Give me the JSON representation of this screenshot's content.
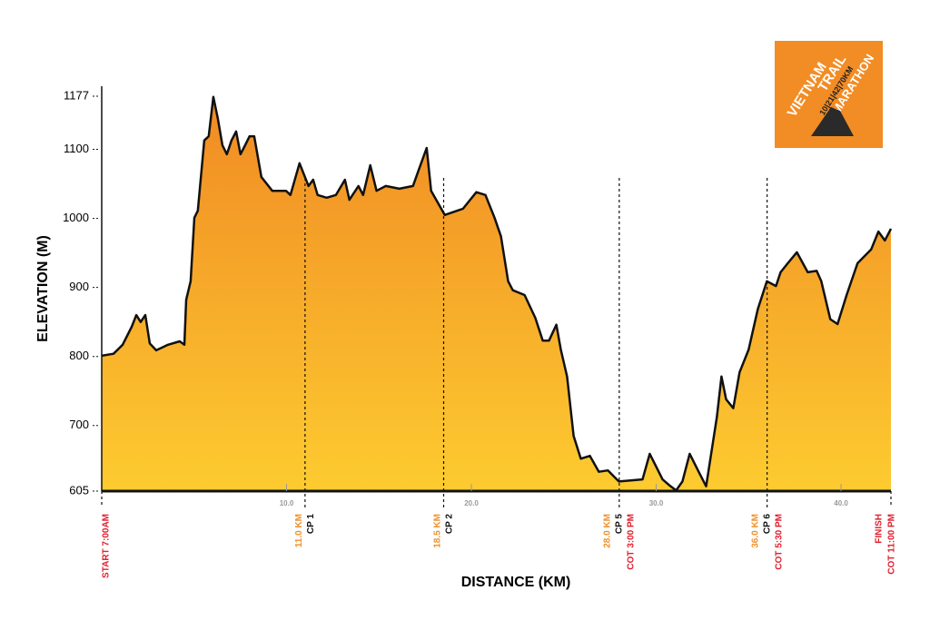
{
  "chart_data": {
    "type": "area",
    "xlabel": "DISTANCE (KM)",
    "ylabel": "ELEVATION (M)",
    "x": [
      0,
      0.64,
      1.13,
      1.62,
      1.87,
      2.11,
      2.36,
      2.6,
      2.95,
      3.58,
      4.22,
      4.47,
      4.57,
      4.81,
      5.01,
      5.2,
      5.55,
      5.79,
      6.04,
      6.28,
      6.53,
      6.77,
      7.02,
      7.27,
      7.51,
      7.76,
      8.0,
      8.25,
      8.64,
      9.23,
      9.97,
      10.21,
      10.7,
      11.19,
      11.44,
      11.68,
      12.17,
      12.67,
      13.16,
      13.4,
      13.89,
      14.14,
      14.53,
      14.87,
      15.37,
      16.1,
      16.84,
      17.19,
      17.58,
      17.82,
      18.56,
      19.54,
      20.27,
      20.76,
      21.25,
      21.6,
      21.99,
      22.24,
      22.88,
      23.46,
      23.86,
      24.2,
      24.6,
      24.84,
      25.18,
      25.53,
      25.92,
      26.41,
      26.9,
      27.39,
      27.98,
      29.26,
      29.65,
      29.95,
      30.34,
      30.73,
      31.08,
      31.42,
      31.81,
      32.3,
      32.7,
      33.28,
      33.53,
      33.78,
      34.17,
      34.51,
      35.0,
      35.5,
      35.99,
      36.48,
      36.73,
      37.12,
      37.61,
      38.2,
      38.68,
      38.93,
      39.42,
      39.81,
      40.3,
      40.89,
      41.63,
      42.02,
      42.37,
      42.7
    ],
    "y": [
      801,
      804,
      817,
      843,
      860,
      850,
      860,
      819,
      809,
      817,
      822,
      817,
      882,
      909,
      1001,
      1011,
      1113,
      1119,
      1176,
      1145,
      1106,
      1093,
      1113,
      1126,
      1093,
      1106,
      1119,
      1119,
      1060,
      1040,
      1040,
      1034,
      1080,
      1047,
      1056,
      1034,
      1030,
      1034,
      1056,
      1027,
      1047,
      1034,
      1077,
      1040,
      1047,
      1043,
      1047,
      1073,
      1102,
      1040,
      1005,
      1014,
      1038,
      1034,
      1001,
      974,
      909,
      896,
      889,
      856,
      823,
      823,
      846,
      810,
      771,
      685,
      652,
      656,
      633,
      635,
      619,
      622,
      659,
      643,
      622,
      613,
      606,
      619,
      659,
      633,
      612,
      712,
      771,
      738,
      725,
      777,
      810,
      869,
      909,
      902,
      922,
      935,
      951,
      922,
      924,
      909,
      854,
      847,
      889,
      935,
      955,
      981,
      968,
      985
    ],
    "color_top": "#f08a24",
    "color_bottom": "#fdcb30",
    "line_color": "#111111",
    "xlim": [
      0,
      42.7
    ],
    "ylim": [
      605,
      1177
    ],
    "yticks": [
      605,
      700,
      800,
      900,
      1000,
      1100,
      1177
    ],
    "xticks": [
      {
        "value": 10,
        "label": "10.0"
      },
      {
        "value": 20,
        "label": "20.0"
      },
      {
        "value": 30,
        "label": "30.0"
      },
      {
        "value": 40,
        "label": "40.0"
      }
    ],
    "markers": [
      {
        "x": 0,
        "dashed": false,
        "texts": [
          {
            "text": "START 7:00AM",
            "color": "#e0202e"
          }
        ]
      },
      {
        "x": 11.0,
        "dashed": true,
        "texts": [
          {
            "text": "11.0 KM",
            "color": "#f0902a"
          },
          {
            "text": "CP 1",
            "color": "#111111"
          }
        ]
      },
      {
        "x": 18.5,
        "dashed": true,
        "texts": [
          {
            "text": "18.5 KM",
            "color": "#f0902a"
          },
          {
            "text": "CP 2",
            "color": "#111111"
          }
        ]
      },
      {
        "x": 28.0,
        "dashed": true,
        "texts": [
          {
            "text": "28.0 KM",
            "color": "#f0902a"
          },
          {
            "text": "CP 5",
            "color": "#111111"
          },
          {
            "text": "COT 3:00 PM",
            "color": "#e0202e"
          }
        ]
      },
      {
        "x": 36.0,
        "dashed": true,
        "texts": [
          {
            "text": "36.0 KM",
            "color": "#f0902a"
          },
          {
            "text": "CP 6",
            "color": "#111111"
          },
          {
            "text": "COT 5:30 PM",
            "color": "#e0202e"
          }
        ]
      },
      {
        "x": 42.7,
        "dashed": false,
        "texts": [
          {
            "text": "FINISH",
            "color": "#e0202e"
          },
          {
            "text": "COT 11:00 PM",
            "color": "#e0202e"
          }
        ]
      }
    ]
  },
  "logo": {
    "line1": "VIETNAM",
    "line2": "TRAIL",
    "line3": "MARATHON",
    "line4": "10|21|42|70KM"
  }
}
